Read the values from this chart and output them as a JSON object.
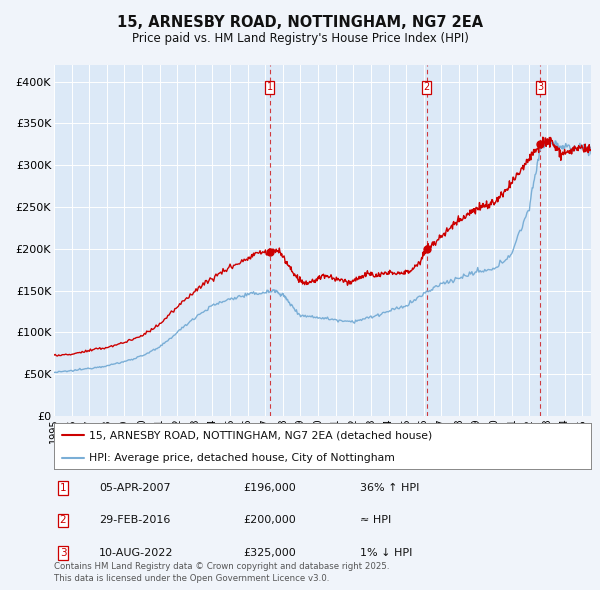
{
  "title_line1": "15, ARNESBY ROAD, NOTTINGHAM, NG7 2EA",
  "title_line2": "Price paid vs. HM Land Registry's House Price Index (HPI)",
  "ylim": [
    0,
    420000
  ],
  "yticks": [
    0,
    50000,
    100000,
    150000,
    200000,
    250000,
    300000,
    350000,
    400000
  ],
  "ytick_labels": [
    "£0",
    "£50K",
    "£100K",
    "£150K",
    "£200K",
    "£250K",
    "£300K",
    "£350K",
    "£400K"
  ],
  "background_color": "#f0f4fa",
  "plot_bg_color": "#dce9f7",
  "grid_color": "#ffffff",
  "red_line_color": "#cc0000",
  "blue_line_color": "#7aaed6",
  "sale1_x_year": 2007.26,
  "sale1_price": 196000,
  "sale1_label": "1",
  "sale2_x_year": 2016.16,
  "sale2_price": 200000,
  "sale2_label": "2",
  "sale3_x_year": 2022.61,
  "sale3_price": 325000,
  "sale3_label": "3",
  "legend_label_red": "15, ARNESBY ROAD, NOTTINGHAM, NG7 2EA (detached house)",
  "legend_label_blue": "HPI: Average price, detached house, City of Nottingham",
  "table_entries": [
    {
      "num": "1",
      "date": "05-APR-2007",
      "price": "£196,000",
      "vs_hpi": "36% ↑ HPI"
    },
    {
      "num": "2",
      "date": "29-FEB-2016",
      "price": "£200,000",
      "vs_hpi": "≈ HPI"
    },
    {
      "num": "3",
      "date": "10-AUG-2022",
      "price": "£325,000",
      "vs_hpi": "1% ↓ HPI"
    }
  ],
  "footnote": "Contains HM Land Registry data © Crown copyright and database right 2025.\nThis data is licensed under the Open Government Licence v3.0.",
  "xmin": 1995,
  "xmax": 2025.5
}
